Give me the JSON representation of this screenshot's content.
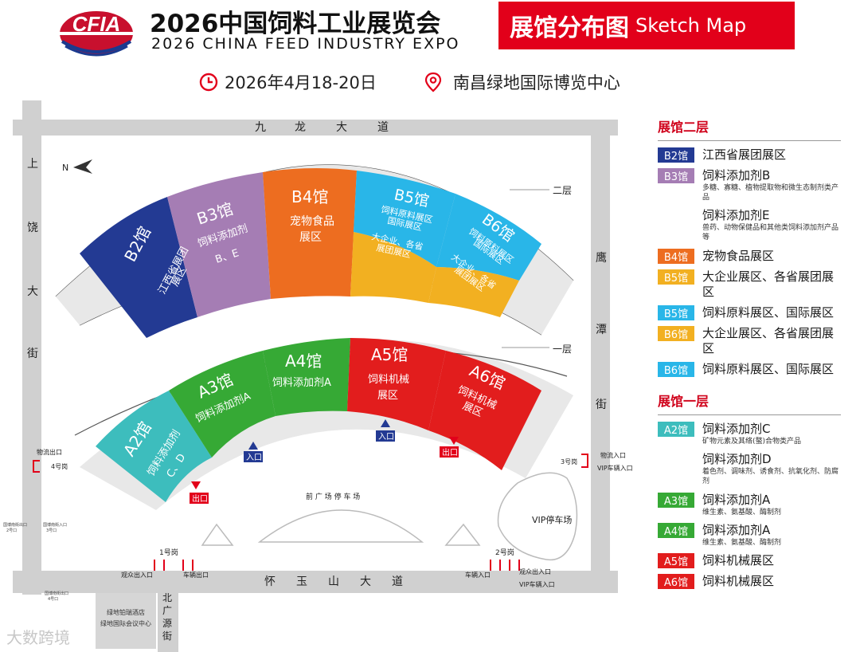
{
  "header": {
    "logo_text": "CFIA",
    "title_zh": "2026中国饲料工业展览会",
    "title_en": "2026 CHINA FEED INDUSTRY EXPO",
    "badge_zh": "展馆分布图",
    "badge_en": "Sketch Map",
    "date": "2026年4月18-20日",
    "venue": "南昌绿地国际博览中心"
  },
  "streets": {
    "top": [
      "九",
      "龙",
      "大",
      "道"
    ],
    "bottom": [
      "怀",
      "玉",
      "山",
      "大",
      "道"
    ],
    "left": [
      "上",
      "饶",
      "大",
      "街"
    ],
    "right": [
      "鹰",
      "潭",
      "街"
    ],
    "bottom_side": [
      "北",
      "广",
      "源",
      "街"
    ]
  },
  "map": {
    "north": "N",
    "floor2": "二层",
    "floor1": "一层",
    "front_parking": "前 广 场 停 车 场",
    "vip_parking": "VIP停车场",
    "entrance": "入口",
    "exit": "出口",
    "gate1": "1号岗",
    "gate2": "2号岗",
    "gate3": "3号岗",
    "gate4": "4号岗",
    "visitor_entrance": "观众出入口",
    "vehicle_exit": "车辆出口",
    "vehicle_entrance": "车辆入口",
    "vip_vehicle_entrance": "VIP车辆入口",
    "logistics_exit": "物流出口",
    "logistics_entrance": "物流入口",
    "gate_small_a": "国博南街出口",
    "gate_small_a2": "2号口",
    "gate_small_b": "国博南街入口",
    "gate_small_b2": "3号口",
    "gate_small_c": "国博南街出口",
    "gate_small_c2": "4号口",
    "hotel_1": "绿地铂瑞酒店",
    "hotel_2": "绿地国际会议中心",
    "halls": {
      "B2": {
        "name": "B2馆",
        "l1": "江西省展团",
        "l2": "展区",
        "color": "#233a93"
      },
      "B3": {
        "name": "B3馆",
        "l1": "饲料添加剂",
        "l2": "B、E",
        "color": "#a57db4"
      },
      "B4": {
        "name": "B4馆",
        "l1": "宠物食品",
        "l2": "展区",
        "color": "#ed6d20"
      },
      "B5": {
        "name": "B5馆",
        "l1": "饲料原料展区",
        "l2": "国际展区",
        "l3": "大企业、各省",
        "l4": "展团展区",
        "top_color": "#29b6e8",
        "bot_color": "#f2b021"
      },
      "B6": {
        "name": "B6馆",
        "l1": "饲料原料展区",
        "l2": "国际展区",
        "l3": "大企业、各省",
        "l4": "展团展区",
        "top_color": "#29b6e8",
        "bot_color": "#f2b021"
      },
      "A2": {
        "name": "A2馆",
        "l1": "饲料添加剂",
        "l2": "C、D",
        "color": "#3dbdbd"
      },
      "A3": {
        "name": "A3馆",
        "l1": "饲料添加剂A",
        "color": "#36a935"
      },
      "A4": {
        "name": "A4馆",
        "l1": "饲料添加剂A",
        "color": "#36a935"
      },
      "A5": {
        "name": "A5馆",
        "l1": "饲料机械",
        "l2": "展区",
        "color": "#e21d1d"
      },
      "A6": {
        "name": "A6馆",
        "l1": "饲料机械",
        "l2": "展区",
        "color": "#e21d1d"
      }
    }
  },
  "legend": {
    "floor2_title": "展馆二层",
    "floor1_title": "展馆一层",
    "floor2": [
      {
        "badge": "B2馆",
        "color": "#233a93",
        "text": "江西省展团展区"
      },
      {
        "badge": "B3馆",
        "color": "#a57db4",
        "text": "饲料添加剂B",
        "sub": "多糖、寡糖、植物提取物和微生态制剂类产品",
        "extra_text": "饲料添加剂E",
        "extra_sub": "兽药、动物保健品和其他类饲料添加剂产品等"
      },
      {
        "badge": "B4馆",
        "color": "#ed6d20",
        "text": "宠物食品展区"
      },
      {
        "badge": "B5馆",
        "color": "#f2b021",
        "text": "大企业展区、各省展团展区"
      },
      {
        "badge": "B5馆",
        "color": "#29b6e8",
        "text": "饲料原料展区、国际展区"
      },
      {
        "badge": "B6馆",
        "color": "#f2b021",
        "text": "大企业展区、各省展团展区"
      },
      {
        "badge": "B6馆",
        "color": "#29b6e8",
        "text": "饲料原料展区、国际展区"
      }
    ],
    "floor1": [
      {
        "badge": "A2馆",
        "color": "#3dbdbd",
        "text": "饲料添加剂C",
        "sub": "矿物元素及其络(螯)合物类产品",
        "extra_text": "饲料添加剂D",
        "extra_sub": "着色剂、调味剂、诱食剂、抗氧化剂、防腐剂"
      },
      {
        "badge": "A3馆",
        "color": "#36a935",
        "text": "饲料添加剂A",
        "sub": "维生素、氨基酸、酶制剂"
      },
      {
        "badge": "A4馆",
        "color": "#36a935",
        "text": "饲料添加剂A",
        "sub": "维生素、氨基酸、酶制剂"
      },
      {
        "badge": "A5馆",
        "color": "#e21d1d",
        "text": "饲料机械展区"
      },
      {
        "badge": "A6馆",
        "color": "#e21d1d",
        "text": "饲料机械展区"
      }
    ]
  },
  "watermark": "大数跨境"
}
